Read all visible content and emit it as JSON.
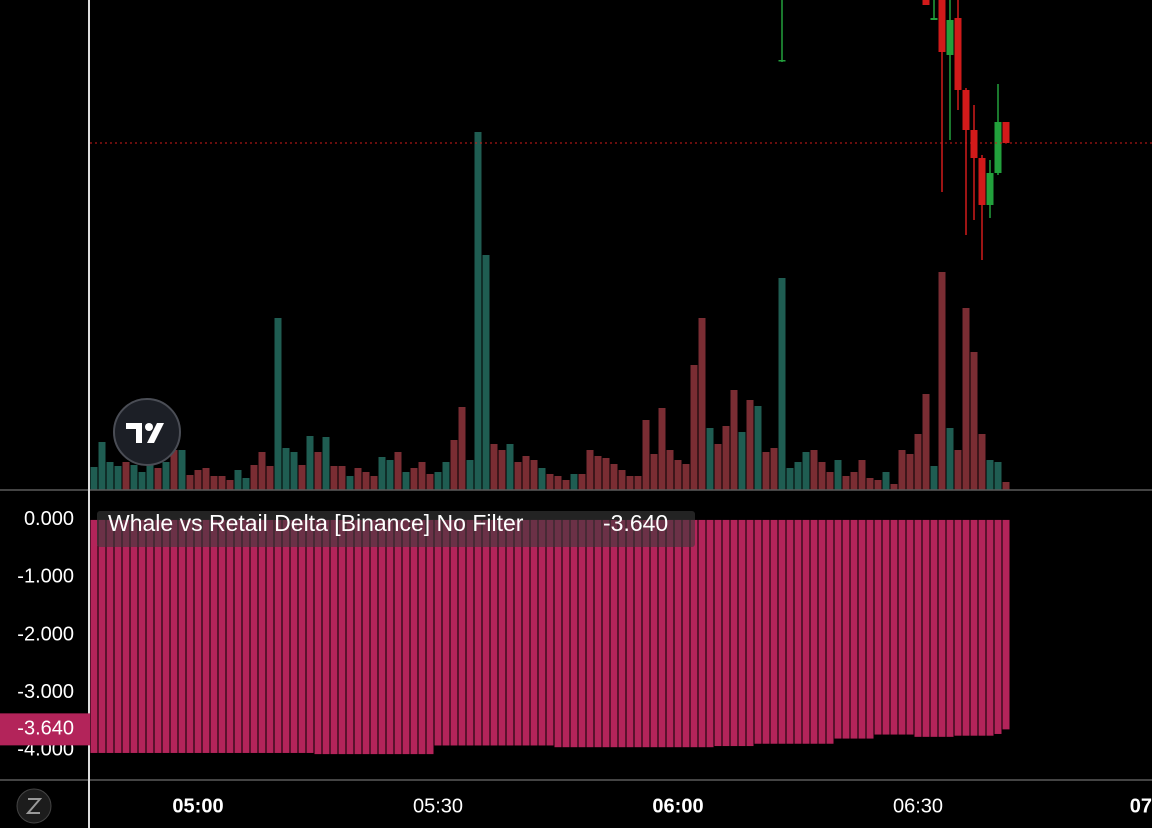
{
  "chart_data": [
    {
      "type": "bar",
      "xlim": [
        286.5,
        419.25
      ],
      "ylim": [
        0,
        490
      ],
      "x": [
        287,
        288,
        289,
        290,
        291,
        292,
        293,
        294,
        295,
        296,
        297,
        298,
        299,
        300,
        301,
        302,
        303,
        304,
        305,
        306,
        307,
        308,
        309,
        310,
        311,
        312,
        313,
        314,
        315,
        316,
        317,
        318,
        319,
        320,
        321,
        322,
        323,
        324,
        325,
        326,
        327,
        328,
        329,
        330,
        331,
        332,
        333,
        334,
        335,
        336,
        337,
        338,
        339,
        340,
        341,
        342,
        343,
        344,
        345,
        346,
        347,
        348,
        349,
        350,
        351,
        352,
        353,
        354,
        355,
        356,
        357,
        358,
        359,
        360,
        361,
        362,
        363,
        364,
        365,
        366,
        367,
        368,
        369,
        370,
        371,
        372,
        373,
        374,
        375,
        376,
        377,
        378,
        379,
        380,
        381,
        382,
        383,
        384,
        385,
        386,
        387,
        388,
        389,
        390,
        391,
        392,
        393,
        394,
        395,
        396,
        397,
        398,
        399,
        400,
        401
      ],
      "values": [
        23,
        48,
        28,
        24,
        28,
        25,
        18,
        30,
        22,
        28,
        40,
        40,
        15,
        20,
        22,
        14,
        14,
        10,
        20,
        12,
        25,
        38,
        24,
        172,
        42,
        38,
        25,
        54,
        38,
        53,
        24,
        24,
        14,
        22,
        18,
        14,
        33,
        30,
        38,
        18,
        22,
        28,
        16,
        18,
        28,
        50,
        83,
        30,
        358,
        235,
        46,
        40,
        46,
        28,
        34,
        30,
        22,
        16,
        14,
        10,
        16,
        16,
        40,
        34,
        32,
        26,
        20,
        14,
        14,
        70,
        36,
        82,
        40,
        30,
        26,
        125,
        172,
        62,
        46,
        64,
        100,
        58,
        90,
        84,
        38,
        42,
        212,
        22,
        28,
        38,
        40,
        28,
        18,
        30,
        14,
        18,
        30,
        12,
        10,
        18,
        6,
        40,
        36,
        56,
        96,
        24,
        218,
        62,
        40,
        182,
        138,
        56,
        30,
        28,
        8
      ],
      "colors": [
        "#1f5d52",
        "#1f5d52",
        "#1f5d52",
        "#1f5d52",
        "#7a2d33",
        "#1f5d52",
        "#1f5d52",
        "#1f5d52",
        "#7a2d33",
        "#1f5d52",
        "#7a2d33",
        "#1f5d52",
        "#7a2d33",
        "#7a2d33",
        "#7a2d33",
        "#7a2d33",
        "#7a2d33",
        "#7a2d33",
        "#1f5d52",
        "#1f5d52",
        "#7a2d33",
        "#7a2d33",
        "#7a2d33",
        "#1f5d52",
        "#1f5d52",
        "#1f5d52",
        "#7a2d33",
        "#1f5d52",
        "#7a2d33",
        "#1f5d52",
        "#7a2d33",
        "#7a2d33",
        "#1f5d52",
        "#7a2d33",
        "#7a2d33",
        "#7a2d33",
        "#1f5d52",
        "#1f5d52",
        "#7a2d33",
        "#1f5d52",
        "#7a2d33",
        "#7a2d33",
        "#7a2d33",
        "#1f5d52",
        "#1f5d52",
        "#7a2d33",
        "#7a2d33",
        "#1f5d52",
        "#1f5d52",
        "#1f5d52",
        "#7a2d33",
        "#7a2d33",
        "#1f5d52",
        "#7a2d33",
        "#7a2d33",
        "#7a2d33",
        "#1f5d52",
        "#7a2d33",
        "#7a2d33",
        "#7a2d33",
        "#1f5d52",
        "#7a2d33",
        "#7a2d33",
        "#7a2d33",
        "#7a2d33",
        "#7a2d33",
        "#7a2d33",
        "#7a2d33",
        "#7a2d33",
        "#7a2d33",
        "#7a2d33",
        "#7a2d33",
        "#7a2d33",
        "#7a2d33",
        "#7a2d33",
        "#7a2d33",
        "#7a2d33",
        "#1f5d52",
        "#7a2d33",
        "#7a2d33",
        "#7a2d33",
        "#1f5d52",
        "#7a2d33",
        "#1f5d52",
        "#7a2d33",
        "#7a2d33",
        "#1f5d52",
        "#1f5d52",
        "#1f5d52",
        "#1f5d52",
        "#7a2d33",
        "#7a2d33",
        "#7a2d33",
        "#1f5d52",
        "#7a2d33",
        "#7a2d33",
        "#7a2d33",
        "#7a2d33",
        "#7a2d33",
        "#1f5d52",
        "#7a2d33",
        "#7a2d33",
        "#7a2d33",
        "#7a2d33",
        "#7a2d33",
        "#1f5d52",
        "#7a2d33",
        "#1f5d52",
        "#7a2d33",
        "#7a2d33",
        "#7a2d33",
        "#7a2d33",
        "#1f5d52",
        "#1f5d52",
        "#7a2d33"
      ]
    },
    {
      "type": "candlestick",
      "xlim": [
        286.5,
        419.25
      ],
      "ylim": [
        0,
        490
      ],
      "up_color": "#22a03c",
      "down_color": "#d11a1a",
      "x": [
        373,
        391,
        392,
        393,
        394,
        395,
        396,
        397,
        398,
        399,
        400,
        401
      ],
      "open": [
        429,
        490,
        470,
        490,
        435,
        472,
        400,
        360,
        332,
        285,
        317,
        368
      ],
      "high": [
        490,
        490,
        490,
        490,
        490,
        490,
        402,
        385,
        335,
        330,
        406,
        368
      ],
      "low": [
        428,
        485,
        470,
        298,
        350,
        380,
        255,
        270,
        230,
        272,
        315,
        347
      ],
      "close": [
        430,
        485,
        472,
        438,
        470,
        400,
        360,
        332,
        285,
        317,
        368,
        347
      ]
    },
    {
      "type": "bar",
      "title": "Whale vs Retail Delta [Binance] No Filter",
      "last_label": "-3.640",
      "color": "#b3245a",
      "xlim": [
        286.5,
        419.25
      ],
      "ylim": [
        -4.52,
        0.52
      ],
      "yticks": [
        {
          "value": 0,
          "label": "0.000"
        },
        {
          "value": -1,
          "label": "-1.000"
        },
        {
          "value": -2,
          "label": "-2.000"
        },
        {
          "value": -3,
          "label": "-3.000"
        },
        {
          "value": -4,
          "label": "-4.000"
        }
      ],
      "xticks": [
        {
          "value": 300,
          "label": "05:00"
        },
        {
          "value": 330,
          "label": "05:30"
        },
        {
          "value": 360,
          "label": "06:00"
        },
        {
          "value": 390,
          "label": "06:30"
        },
        {
          "value": 420,
          "label": "07"
        }
      ],
      "x": [
        287,
        288,
        289,
        290,
        291,
        292,
        293,
        294,
        295,
        296,
        297,
        298,
        299,
        300,
        301,
        302,
        303,
        304,
        305,
        306,
        307,
        308,
        309,
        310,
        311,
        312,
        313,
        314,
        315,
        316,
        317,
        318,
        319,
        320,
        321,
        322,
        323,
        324,
        325,
        326,
        327,
        328,
        329,
        330,
        331,
        332,
        333,
        334,
        335,
        336,
        337,
        338,
        339,
        340,
        341,
        342,
        343,
        344,
        345,
        346,
        347,
        348,
        349,
        350,
        351,
        352,
        353,
        354,
        355,
        356,
        357,
        358,
        359,
        360,
        361,
        362,
        363,
        364,
        365,
        366,
        367,
        368,
        369,
        370,
        371,
        372,
        373,
        374,
        375,
        376,
        377,
        378,
        379,
        380,
        381,
        382,
        383,
        384,
        385,
        386,
        387,
        388,
        389,
        390,
        391,
        392,
        393,
        394,
        395,
        396,
        397,
        398,
        399,
        400,
        401
      ],
      "values": [
        -4.05,
        -4.05,
        -4.05,
        -4.05,
        -4.05,
        -4.05,
        -4.05,
        -4.05,
        -4.05,
        -4.05,
        -4.05,
        -4.05,
        -4.05,
        -4.05,
        -4.05,
        -4.05,
        -4.05,
        -4.05,
        -4.05,
        -4.05,
        -4.05,
        -4.05,
        -4.05,
        -4.05,
        -4.05,
        -4.05,
        -4.05,
        -4.05,
        -4.07,
        -4.07,
        -4.07,
        -4.07,
        -4.07,
        -4.07,
        -4.07,
        -4.07,
        -4.07,
        -4.07,
        -4.07,
        -4.07,
        -4.07,
        -4.07,
        -4.07,
        -3.92,
        -3.92,
        -3.92,
        -3.92,
        -3.92,
        -3.92,
        -3.92,
        -3.92,
        -3.92,
        -3.92,
        -3.92,
        -3.92,
        -3.92,
        -3.92,
        -3.92,
        -3.95,
        -3.95,
        -3.95,
        -3.95,
        -3.95,
        -3.95,
        -3.95,
        -3.95,
        -3.95,
        -3.95,
        -3.95,
        -3.95,
        -3.95,
        -3.95,
        -3.95,
        -3.95,
        -3.95,
        -3.95,
        -3.95,
        -3.95,
        -3.93,
        -3.93,
        -3.93,
        -3.93,
        -3.93,
        -3.89,
        -3.89,
        -3.89,
        -3.89,
        -3.89,
        -3.89,
        -3.89,
        -3.89,
        -3.89,
        -3.89,
        -3.8,
        -3.8,
        -3.8,
        -3.8,
        -3.8,
        -3.73,
        -3.73,
        -3.73,
        -3.73,
        -3.73,
        -3.77,
        -3.77,
        -3.77,
        -3.77,
        -3.77,
        -3.75,
        -3.75,
        -3.75,
        -3.75,
        -3.75,
        -3.72,
        -3.64
      ]
    }
  ]
}
